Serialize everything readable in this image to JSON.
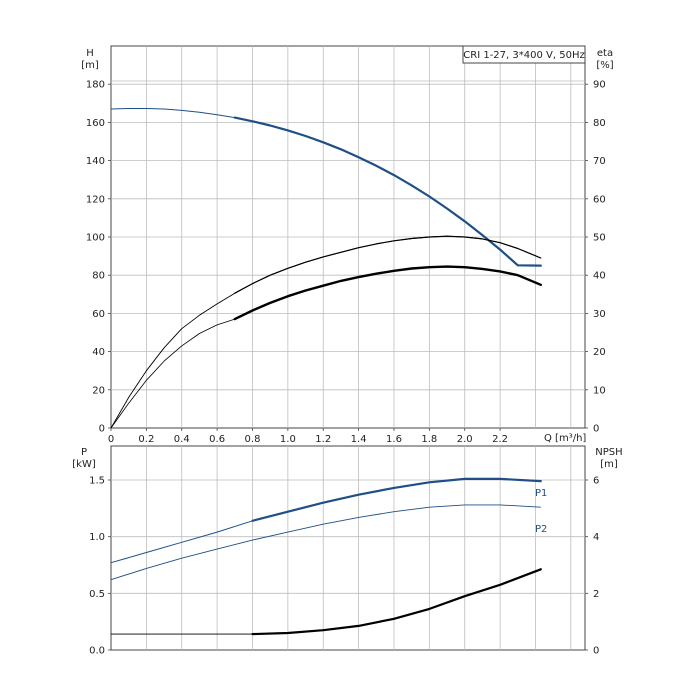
{
  "chart_data": [
    {
      "type": "line",
      "panel": "top",
      "legend_text": "CRI 1-27, 3*400 V, 50Hz",
      "legend_position": "top-right",
      "grid": true,
      "x_axis": {
        "label": "Q [m³/h]",
        "range": [
          0,
          2.68
        ],
        "ticks": [
          {
            "v": 0,
            "label": "0"
          },
          {
            "v": 0.2,
            "label": "0.2"
          },
          {
            "v": 0.4,
            "label": "0.4"
          },
          {
            "v": 0.6,
            "label": "0.6"
          },
          {
            "v": 0.8,
            "label": "0.8"
          },
          {
            "v": 1.0,
            "label": "1.0"
          },
          {
            "v": 1.2,
            "label": "1.2"
          },
          {
            "v": 1.4,
            "label": "1.4"
          },
          {
            "v": 1.6,
            "label": "1.6"
          },
          {
            "v": 1.8,
            "label": "1.8"
          },
          {
            "v": 2.0,
            "label": "2.0"
          },
          {
            "v": 2.2,
            "label": "2.2"
          }
        ]
      },
      "y_left": {
        "label_line1": "H",
        "label_line2": "[m]",
        "range": [
          0,
          200
        ],
        "ticks": [
          {
            "v": 0,
            "label": "0"
          },
          {
            "v": 20,
            "label": "20"
          },
          {
            "v": 40,
            "label": "40"
          },
          {
            "v": 60,
            "label": "60"
          },
          {
            "v": 80,
            "label": "80"
          },
          {
            "v": 100,
            "label": "100"
          },
          {
            "v": 120,
            "label": "120"
          },
          {
            "v": 140,
            "label": "140"
          },
          {
            "v": 160,
            "label": "160"
          },
          {
            "v": 180,
            "label": "180"
          }
        ]
      },
      "y_right": {
        "label_line1": "eta",
        "label_line2": "[%]",
        "range": [
          0,
          100
        ],
        "ticks": [
          {
            "v": 0,
            "label": "0"
          },
          {
            "v": 10,
            "label": "10"
          },
          {
            "v": 20,
            "label": "20"
          },
          {
            "v": 30,
            "label": "30"
          },
          {
            "v": 40,
            "label": "40"
          },
          {
            "v": 50,
            "label": "50"
          },
          {
            "v": 60,
            "label": "60"
          },
          {
            "v": 70,
            "label": "70"
          },
          {
            "v": 80,
            "label": "80"
          },
          {
            "v": 90,
            "label": "90"
          }
        ]
      },
      "series": [
        {
          "axis": "left",
          "color": "#1f4f86",
          "thin_width": 1,
          "bold_width": 2.2,
          "bold_from": 0.7,
          "bold_to": 2.43,
          "x": [
            0,
            0.1,
            0.2,
            0.3,
            0.4,
            0.5,
            0.6,
            0.7,
            0.8,
            0.9,
            1.0,
            1.1,
            1.2,
            1.3,
            1.4,
            1.5,
            1.6,
            1.7,
            1.8,
            1.9,
            2.0,
            2.1,
            2.2,
            2.3,
            2.43
          ],
          "y": [
            167,
            167.3,
            167.3,
            167,
            166.3,
            165.3,
            164,
            162.5,
            160.6,
            158.4,
            155.8,
            152.9,
            149.6,
            145.9,
            141.8,
            137.3,
            132.4,
            127,
            121.2,
            114.9,
            108.2,
            101,
            93.4,
            85.2,
            85
          ]
        },
        {
          "axis": "right",
          "color": "#000000",
          "thin_width": 0.9,
          "bold_width": 1.2,
          "bold_from": 0.7,
          "bold_to": 2.43,
          "x": [
            0,
            0.1,
            0.2,
            0.3,
            0.4,
            0.5,
            0.6,
            0.7,
            0.8,
            0.9,
            1.0,
            1.1,
            1.2,
            1.3,
            1.4,
            1.5,
            1.6,
            1.7,
            1.8,
            1.9,
            2.0,
            2.1,
            2.2,
            2.3,
            2.43
          ],
          "y": [
            0,
            8,
            15,
            21,
            26,
            29.5,
            32.5,
            35.3,
            37.8,
            40,
            41.8,
            43.4,
            44.8,
            46,
            47.2,
            48.2,
            49,
            49.6,
            50,
            50.2,
            50,
            49.5,
            48.5,
            47,
            44.5
          ]
        },
        {
          "axis": "left",
          "color": "#000000",
          "thin_width": 0.8,
          "bold_width": 2.4,
          "bold_from": 0.7,
          "bold_to": 2.43,
          "x": [
            0,
            0.1,
            0.2,
            0.3,
            0.4,
            0.5,
            0.6,
            0.7,
            0.8,
            0.9,
            1.0,
            1.1,
            1.2,
            1.3,
            1.4,
            1.5,
            1.6,
            1.7,
            1.8,
            1.9,
            2.0,
            2.1,
            2.2,
            2.3,
            2.43
          ],
          "y": [
            0,
            13,
            25,
            35,
            43,
            49.5,
            54,
            57,
            61.5,
            65.5,
            69,
            72,
            74.5,
            77,
            79,
            80.8,
            82.3,
            83.5,
            84.2,
            84.5,
            84.2,
            83.3,
            82,
            80,
            75
          ]
        }
      ]
    },
    {
      "type": "line",
      "panel": "bottom",
      "grid": true,
      "x_axis": {
        "range": [
          0,
          2.68
        ]
      },
      "y_left": {
        "label_line1": "P",
        "label_line2": "[kW]",
        "range": [
          0,
          1.8
        ],
        "ticks": [
          {
            "v": 0,
            "label": "0.0"
          },
          {
            "v": 0.5,
            "label": "0.5"
          },
          {
            "v": 1.0,
            "label": "1.0"
          },
          {
            "v": 1.5,
            "label": "1.5"
          }
        ]
      },
      "y_right": {
        "label_line1": "NPSH",
        "label_line2": "[m]",
        "range": [
          0,
          7.2
        ],
        "ticks": [
          {
            "v": 0,
            "label": "0"
          },
          {
            "v": 2,
            "label": "2"
          },
          {
            "v": 4,
            "label": "4"
          },
          {
            "v": 6,
            "label": "6"
          }
        ]
      },
      "series": [
        {
          "name": "P1",
          "axis": "left",
          "color": "#1f4f86",
          "thin_width": 1,
          "bold_width": 2.2,
          "bold_from": 0.7,
          "bold_to": 2.43,
          "x": [
            0,
            0.2,
            0.4,
            0.6,
            0.8,
            1.0,
            1.2,
            1.4,
            1.6,
            1.8,
            2.0,
            2.2,
            2.43
          ],
          "y": [
            0.77,
            0.86,
            0.95,
            1.04,
            1.14,
            1.22,
            1.3,
            1.37,
            1.43,
            1.48,
            1.51,
            1.51,
            1.49
          ]
        },
        {
          "name": "P2",
          "axis": "left",
          "color": "#1f4f86",
          "thin_width": 0.9,
          "bold_width": 0.9,
          "bold_from": 0.7,
          "bold_to": 2.43,
          "x": [
            0,
            0.2,
            0.4,
            0.6,
            0.8,
            1.0,
            1.2,
            1.4,
            1.6,
            1.8,
            2.0,
            2.2,
            2.43
          ],
          "y": [
            0.62,
            0.72,
            0.81,
            0.89,
            0.97,
            1.04,
            1.11,
            1.17,
            1.22,
            1.26,
            1.28,
            1.28,
            1.26
          ]
        },
        {
          "axis": "right",
          "color": "#000000",
          "thin_width": 0.9,
          "bold_width": 2.2,
          "bold_from": 0.7,
          "bold_to": 2.43,
          "x": [
            0,
            0.2,
            0.4,
            0.6,
            0.8,
            1.0,
            1.2,
            1.4,
            1.6,
            1.8,
            2.0,
            2.2,
            2.43
          ],
          "y": [
            0.56,
            0.56,
            0.56,
            0.56,
            0.56,
            0.6,
            0.7,
            0.85,
            1.1,
            1.45,
            1.9,
            2.3,
            2.85
          ]
        }
      ]
    }
  ]
}
